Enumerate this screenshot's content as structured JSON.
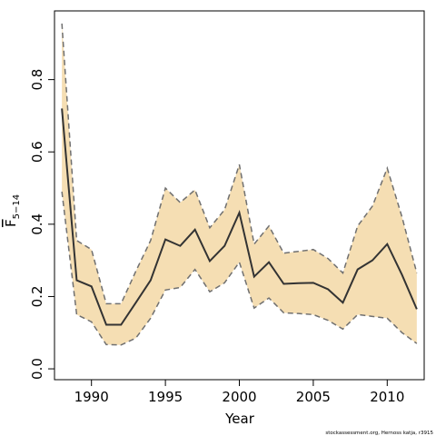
{
  "chart_data": {
    "type": "line",
    "title": "",
    "xlabel": "Year",
    "ylabel": "F",
    "ylabel_overline": true,
    "ylabel_subscript": "5−14",
    "xlim": [
      1987.5,
      2012.5
    ],
    "ylim": [
      -0.03,
      0.99
    ],
    "xticks": [
      1990,
      1995,
      2000,
      2005,
      2010
    ],
    "yticks": [
      0.0,
      0.2,
      0.4,
      0.6,
      0.8
    ],
    "ytick_labels": [
      "0.0",
      "0.2",
      "0.4",
      "0.6",
      "0.8"
    ],
    "grid": false,
    "colors": {
      "band": "#f5deb3",
      "line": "#333333",
      "bounds": "#707070"
    },
    "credit": "stockassessment.org, Hernoss  katja, r3915",
    "series": [
      {
        "role": "estimate",
        "x": [
          1988,
          1989,
          1990,
          1991,
          1992,
          1993,
          1994,
          1995,
          1996,
          1997,
          1998,
          1999,
          2000,
          2001,
          2002,
          2003,
          2004,
          2005,
          2006,
          2007,
          2008,
          2009,
          2010,
          2011,
          2012
        ],
        "values": [
          0.72,
          0.245,
          0.228,
          0.122,
          0.122,
          0.183,
          0.245,
          0.358,
          0.34,
          0.385,
          0.298,
          0.34,
          0.432,
          0.255,
          0.295,
          0.235,
          0.237,
          0.238,
          0.22,
          0.183,
          0.275,
          0.3,
          0.345,
          0.26,
          0.165
        ]
      },
      {
        "role": "upper",
        "x": [
          1988,
          1989,
          1990,
          1991,
          1992,
          1993,
          1994,
          1995,
          1996,
          1997,
          1998,
          1999,
          2000,
          2001,
          2002,
          2003,
          2004,
          2005,
          2006,
          2007,
          2008,
          2009,
          2010,
          2011,
          2012
        ],
        "values": [
          0.955,
          0.355,
          0.33,
          0.18,
          0.18,
          0.27,
          0.355,
          0.5,
          0.46,
          0.495,
          0.39,
          0.44,
          0.565,
          0.345,
          0.395,
          0.32,
          0.325,
          0.33,
          0.305,
          0.265,
          0.395,
          0.45,
          0.555,
          0.42,
          0.265
        ]
      },
      {
        "role": "lower",
        "x": [
          1988,
          1989,
          1990,
          1991,
          1992,
          1993,
          1994,
          1995,
          1996,
          1997,
          1998,
          1999,
          2000,
          2001,
          2002,
          2003,
          2004,
          2005,
          2006,
          2007,
          2008,
          2009,
          2010,
          2011,
          2012
        ],
        "values": [
          0.49,
          0.15,
          0.13,
          0.067,
          0.066,
          0.085,
          0.14,
          0.218,
          0.225,
          0.275,
          0.213,
          0.238,
          0.295,
          0.168,
          0.196,
          0.155,
          0.153,
          0.15,
          0.134,
          0.11,
          0.15,
          0.145,
          0.14,
          0.1,
          0.07
        ]
      }
    ]
  }
}
